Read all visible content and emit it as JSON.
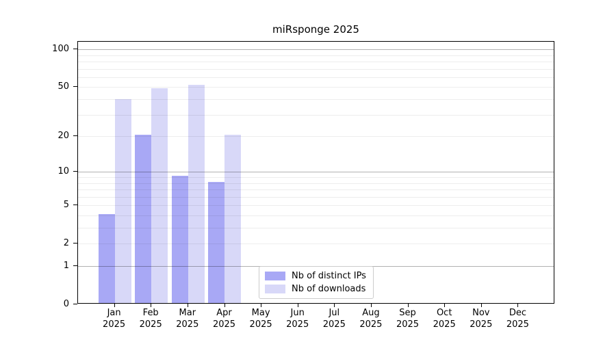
{
  "chart_data": {
    "type": "bar",
    "title": "miRsponge 2025",
    "categories": [
      "Jan",
      "Feb",
      "Mar",
      "Apr",
      "May",
      "Jun",
      "Jul",
      "Aug",
      "Sep",
      "Oct",
      "Nov",
      "Dec"
    ],
    "year_label": "2025",
    "series": [
      {
        "key": "distinct-ips",
        "name": "Nb of distinct IPs",
        "color": "#a8a8f5",
        "values": [
          4,
          20,
          9,
          8,
          null,
          null,
          null,
          null,
          null,
          null,
          null,
          null
        ]
      },
      {
        "key": "downloads",
        "name": "Nb of downloads",
        "color": "#d8d8f8",
        "values": [
          39,
          48,
          51,
          20,
          null,
          null,
          null,
          null,
          null,
          null,
          null,
          null
        ]
      }
    ],
    "xlabel": "",
    "ylabel": "",
    "y_scale": "log1p",
    "y_ticks": [
      0,
      1,
      2,
      5,
      10,
      20,
      50,
      100
    ],
    "y_minor_gridlines": [
      2,
      3,
      4,
      5,
      6,
      7,
      8,
      9,
      20,
      30,
      40,
      50,
      60,
      70,
      80,
      90
    ],
    "y_major_gridlines": [
      1,
      10,
      100
    ],
    "ylim": [
      0,
      115
    ],
    "grid": "horizontal",
    "legend_position": "lower-center-inside"
  }
}
